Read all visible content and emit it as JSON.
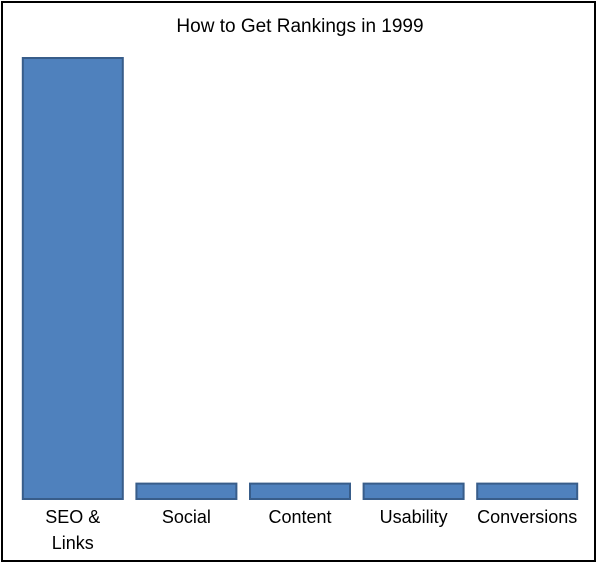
{
  "chart_data": {
    "type": "bar",
    "title": "How to Get Rankings in 1999",
    "categories": [
      "SEO & Links",
      "Social",
      "Content",
      "Usability",
      "Conversions"
    ],
    "category_label_lines": [
      [
        "SEO &",
        "Links"
      ],
      [
        "Social"
      ],
      [
        "Content"
      ],
      [
        "Usability"
      ],
      [
        "Conversions"
      ]
    ],
    "values": [
      100,
      3.5,
      3.5,
      3.5,
      3.5
    ],
    "xlabel": "",
    "ylabel": "",
    "ylim": [
      0,
      100
    ],
    "grid": false,
    "legend": "none",
    "axes_visible": false,
    "colors": {
      "bar_fill": "#4F81BD",
      "bar_stroke": "#385D8A",
      "frame": "#000000",
      "text": "#000000"
    }
  }
}
